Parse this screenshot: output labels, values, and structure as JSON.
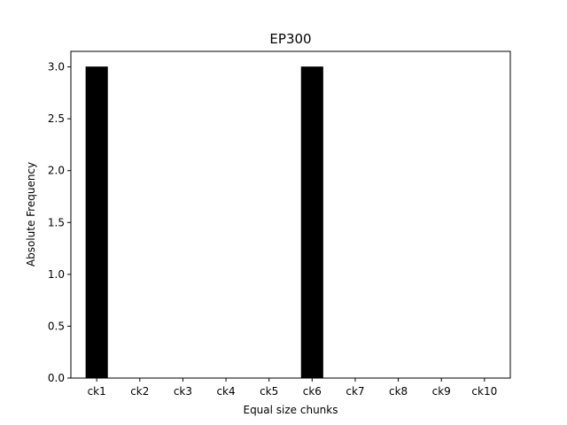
{
  "chart_data": {
    "type": "bar",
    "title": "EP300",
    "xlabel": "Equal size chunks",
    "ylabel": "Absolute Frequency",
    "categories": [
      "ck1",
      "ck2",
      "ck3",
      "ck4",
      "ck5",
      "ck6",
      "ck7",
      "ck8",
      "ck9",
      "ck10"
    ],
    "values": [
      3,
      0,
      0,
      0,
      0,
      3,
      0,
      0,
      0,
      0
    ],
    "ylim": [
      0,
      3.15
    ],
    "yticks": [
      "0.0",
      "0.5",
      "1.0",
      "1.5",
      "2.0",
      "2.5",
      "3.0"
    ],
    "bar_color": "#000000",
    "grid": false,
    "legend": "none"
  }
}
